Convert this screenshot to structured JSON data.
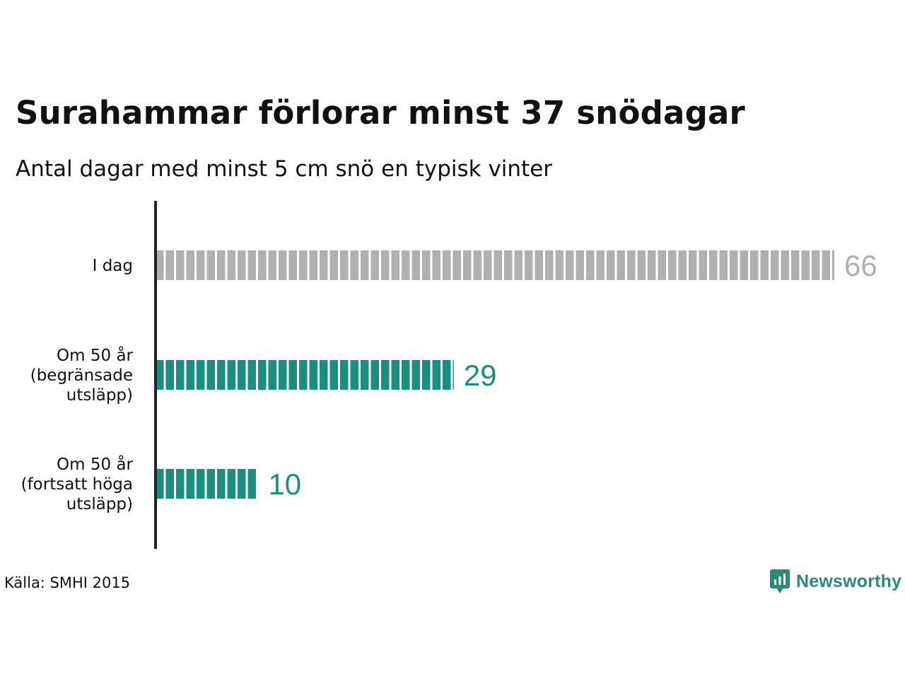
{
  "title": "Surahammar förlorar minst 37 snödagar",
  "subtitle": "Antal dagar med minst 5 cm snö en typisk vinter",
  "source": "Källa: SMHI 2015",
  "brand": {
    "name": "Newsworthy",
    "icon": "newsworthy-logo-icon"
  },
  "colors": {
    "today": "#b0b0b0",
    "future": "#1a8f7f",
    "axis": "#222222"
  },
  "chart_data": {
    "type": "bar",
    "orientation": "horizontal",
    "categories": [
      [
        "I dag"
      ],
      [
        "Om 50 år",
        "(begränsade",
        "utsläpp)"
      ],
      [
        "Om 50 år",
        "(fortsatt höga",
        "utsläpp)"
      ]
    ],
    "values": [
      66,
      29,
      10
    ],
    "value_labels": [
      "66",
      "29",
      "10"
    ],
    "bar_colors": [
      "#b0b0b0",
      "#1a8f7f",
      "#1a8f7f"
    ],
    "label_colors": [
      "#b0b0b0",
      "#1a8f7f",
      "#1a8f7f"
    ],
    "xlim": [
      0,
      66
    ],
    "grid": false,
    "unit": "dagar"
  }
}
